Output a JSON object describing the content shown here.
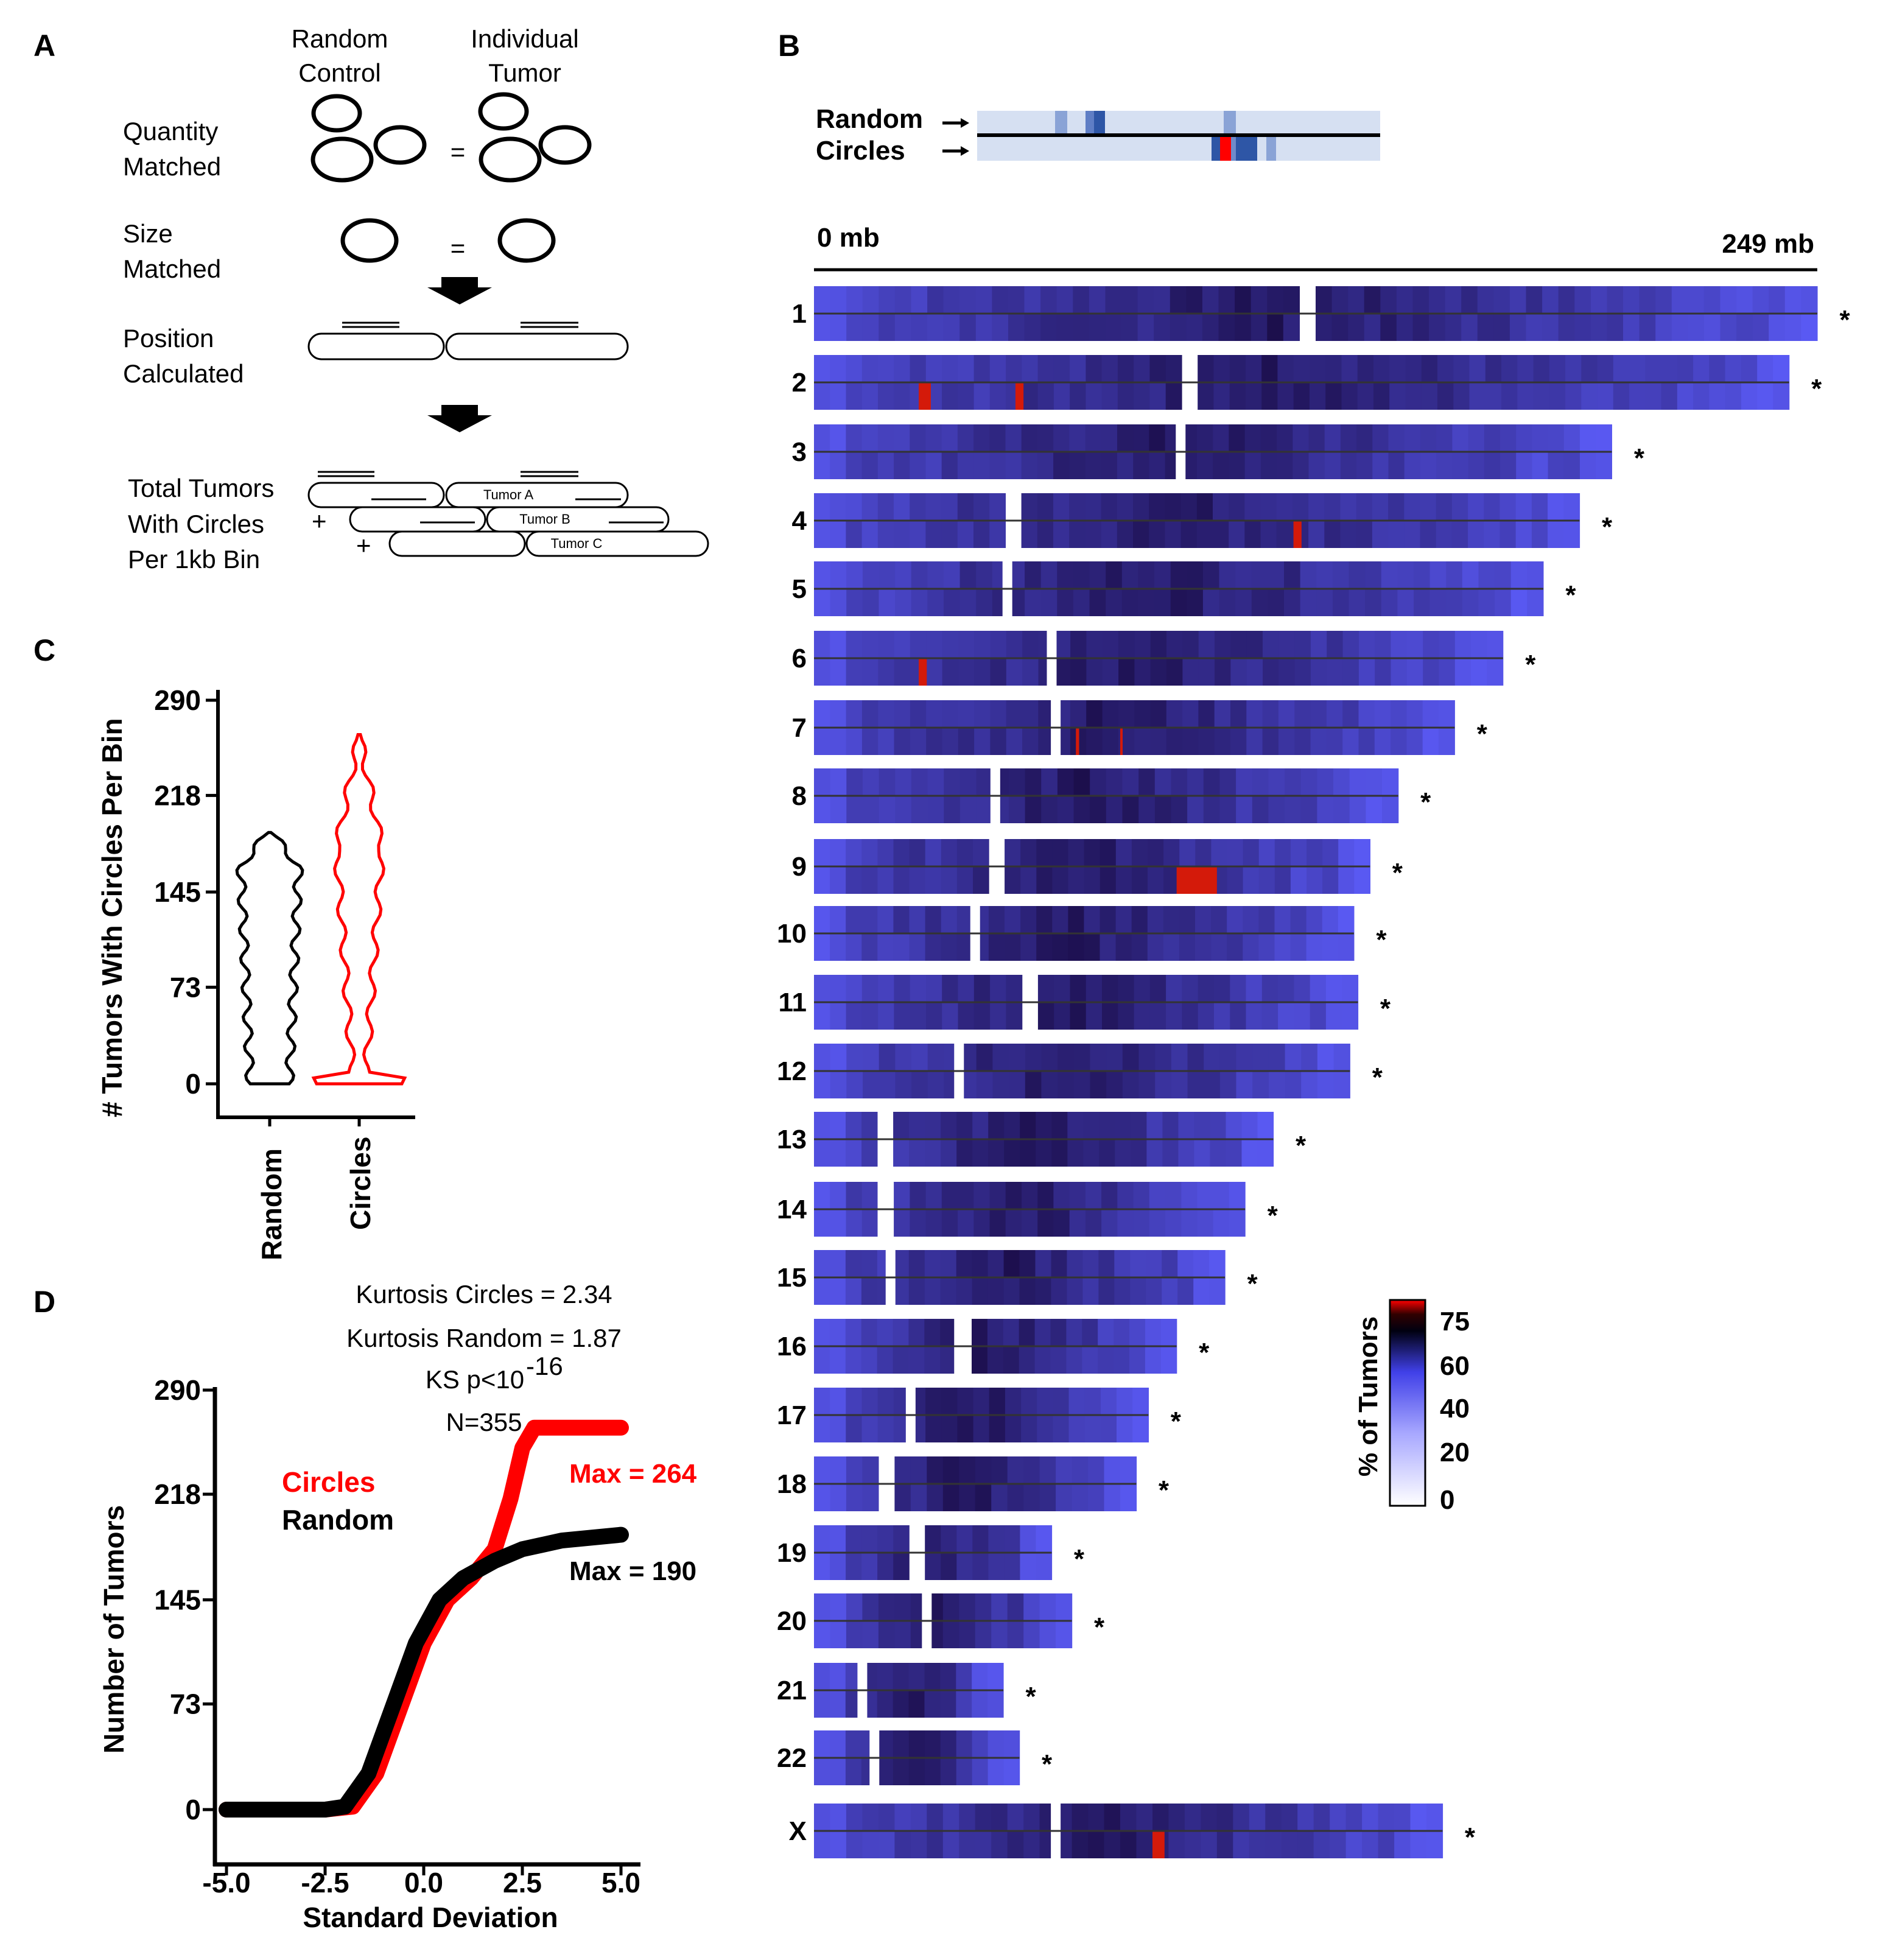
{
  "panels": {
    "a": "A",
    "b": "B",
    "c": "C",
    "d": "D"
  },
  "panelA": {
    "col_random": [
      "Random",
      "Control"
    ],
    "col_individual": [
      "Individual",
      "Tumor"
    ],
    "quantity": [
      "Quantity",
      "Matched"
    ],
    "size": [
      "Size",
      "Matched"
    ],
    "position": [
      "Position",
      "Calculated"
    ],
    "total": [
      "Total Tumors",
      "With Circles",
      "Per 1kb Bin"
    ],
    "equals": "=",
    "plus": "+",
    "tumors": [
      "Tumor A",
      "Tumor B",
      "Tumor C"
    ]
  },
  "panelB": {
    "legend_random": "Random",
    "legend_circles": "Circles",
    "axis_start": "0 mb",
    "axis_end": "249 mb",
    "chromosomes": [
      {
        "name": "1",
        "length": 249,
        "centromere": 123,
        "hot": [],
        "sig": "*"
      },
      {
        "name": "2",
        "length": 242,
        "centromere": 93,
        "hot": [
          {
            "pos": 26,
            "w": 3
          },
          {
            "pos": 50,
            "w": 2
          }
        ],
        "sig": "*"
      },
      {
        "name": "3",
        "length": 198,
        "centromere": 91,
        "hot": [],
        "sig": "*"
      },
      {
        "name": "4",
        "length": 190,
        "centromere": 50,
        "hot": [
          {
            "pos": 119,
            "w": 2
          }
        ],
        "sig": "*"
      },
      {
        "name": "5",
        "length": 181,
        "centromere": 48,
        "hot": [],
        "sig": "*"
      },
      {
        "name": "6",
        "length": 171,
        "centromere": 59,
        "hot": [
          {
            "pos": 26,
            "w": 2
          }
        ],
        "sig": "*"
      },
      {
        "name": "7",
        "length": 159,
        "centromere": 60,
        "hot": [
          {
            "pos": 65,
            "w": 0.8
          },
          {
            "pos": 76,
            "w": 0.6
          }
        ],
        "sig": "*"
      },
      {
        "name": "8",
        "length": 145,
        "centromere": 45,
        "hot": [],
        "sig": "*"
      },
      {
        "name": "9",
        "length": 138,
        "centromere": 45,
        "hot": [
          {
            "pos": 90,
            "w": 10
          }
        ],
        "sig": "*"
      },
      {
        "name": "10",
        "length": 134,
        "centromere": 40,
        "hot": [],
        "sig": "*"
      },
      {
        "name": "11",
        "length": 135,
        "centromere": 54,
        "hot": [],
        "sig": "*"
      },
      {
        "name": "12",
        "length": 133,
        "centromere": 36,
        "hot": [],
        "sig": "*"
      },
      {
        "name": "13",
        "length": 114,
        "centromere": 17,
        "hot": [],
        "sig": "*"
      },
      {
        "name": "14",
        "length": 107,
        "centromere": 17,
        "hot": [],
        "sig": "*"
      },
      {
        "name": "15",
        "length": 102,
        "centromere": 19,
        "hot": [],
        "sig": "*"
      },
      {
        "name": "16",
        "length": 90,
        "centromere": 36,
        "hot": [],
        "sig": "*"
      },
      {
        "name": "17",
        "length": 83,
        "centromere": 24,
        "hot": [],
        "sig": "*"
      },
      {
        "name": "18",
        "length": 80,
        "centromere": 18,
        "hot": [],
        "sig": "*"
      },
      {
        "name": "19",
        "length": 59,
        "centromere": 26,
        "hot": [],
        "sig": "*"
      },
      {
        "name": "20",
        "length": 64,
        "centromere": 28,
        "hot": [],
        "sig": "*"
      },
      {
        "name": "21",
        "length": 47,
        "centromere": 12,
        "hot": [],
        "sig": "*"
      },
      {
        "name": "22",
        "length": 51,
        "centromere": 15,
        "hot": [],
        "sig": "*"
      },
      {
        "name": "X",
        "length": 156,
        "centromere": 60,
        "hot": [
          {
            "pos": 84,
            "w": 3
          }
        ],
        "sig": "*"
      }
    ],
    "colorbar": {
      "label": "% of Tumors",
      "ticks": [
        "75",
        "60",
        "40",
        "20",
        "0"
      ]
    }
  },
  "chart_data": [
    {
      "type": "violin",
      "title": "",
      "ylabel": "# Tumors With Circles Per Bin",
      "ylim": [
        0,
        290
      ],
      "yticks": [
        "290",
        "218",
        "145",
        "73",
        "0"
      ],
      "categories": [
        "Random",
        "Circles"
      ],
      "series": [
        {
          "name": "Random",
          "color": "#000000",
          "max": 190
        },
        {
          "name": "Circles",
          "color": "#ff0000",
          "max": 264
        }
      ]
    },
    {
      "type": "scatter",
      "title": "",
      "xlabel": "Standard Deviation",
      "ylabel": "Number of Tumors",
      "xlim": [
        -5.0,
        5.0
      ],
      "ylim": [
        0,
        290
      ],
      "xticks": [
        "-5.0",
        "-2.5",
        "0.0",
        "2.5",
        "5.0"
      ],
      "yticks": [
        "290",
        "218",
        "145",
        "73",
        "0"
      ],
      "stats": {
        "kurtosis_circles": "Kurtosis Circles = 2.34",
        "kurtosis_random": "Kurtosis Random = 1.87",
        "ks": "KS p<10",
        "ks_exp": "-16",
        "n": "N=355"
      },
      "series": [
        {
          "name": "Circles",
          "color": "#ff0000",
          "max_label": "Max = 264",
          "x": [
            -5.0,
            -2.5,
            -1.8,
            -1.2,
            -0.6,
            0.0,
            0.6,
            1.2,
            1.8,
            2.2,
            2.5,
            2.8,
            3.5,
            5.0
          ],
          "y": [
            0,
            0,
            2,
            25,
            70,
            115,
            145,
            160,
            180,
            215,
            250,
            264,
            264,
            264
          ]
        },
        {
          "name": "Random",
          "color": "#000000",
          "max_label": "Max = 190",
          "x": [
            -5.0,
            -2.5,
            -2.0,
            -1.4,
            -0.8,
            -0.2,
            0.4,
            1.0,
            1.8,
            2.5,
            3.5,
            5.0
          ],
          "y": [
            0,
            0,
            2,
            25,
            70,
            115,
            145,
            160,
            172,
            180,
            186,
            190
          ]
        }
      ]
    }
  ]
}
